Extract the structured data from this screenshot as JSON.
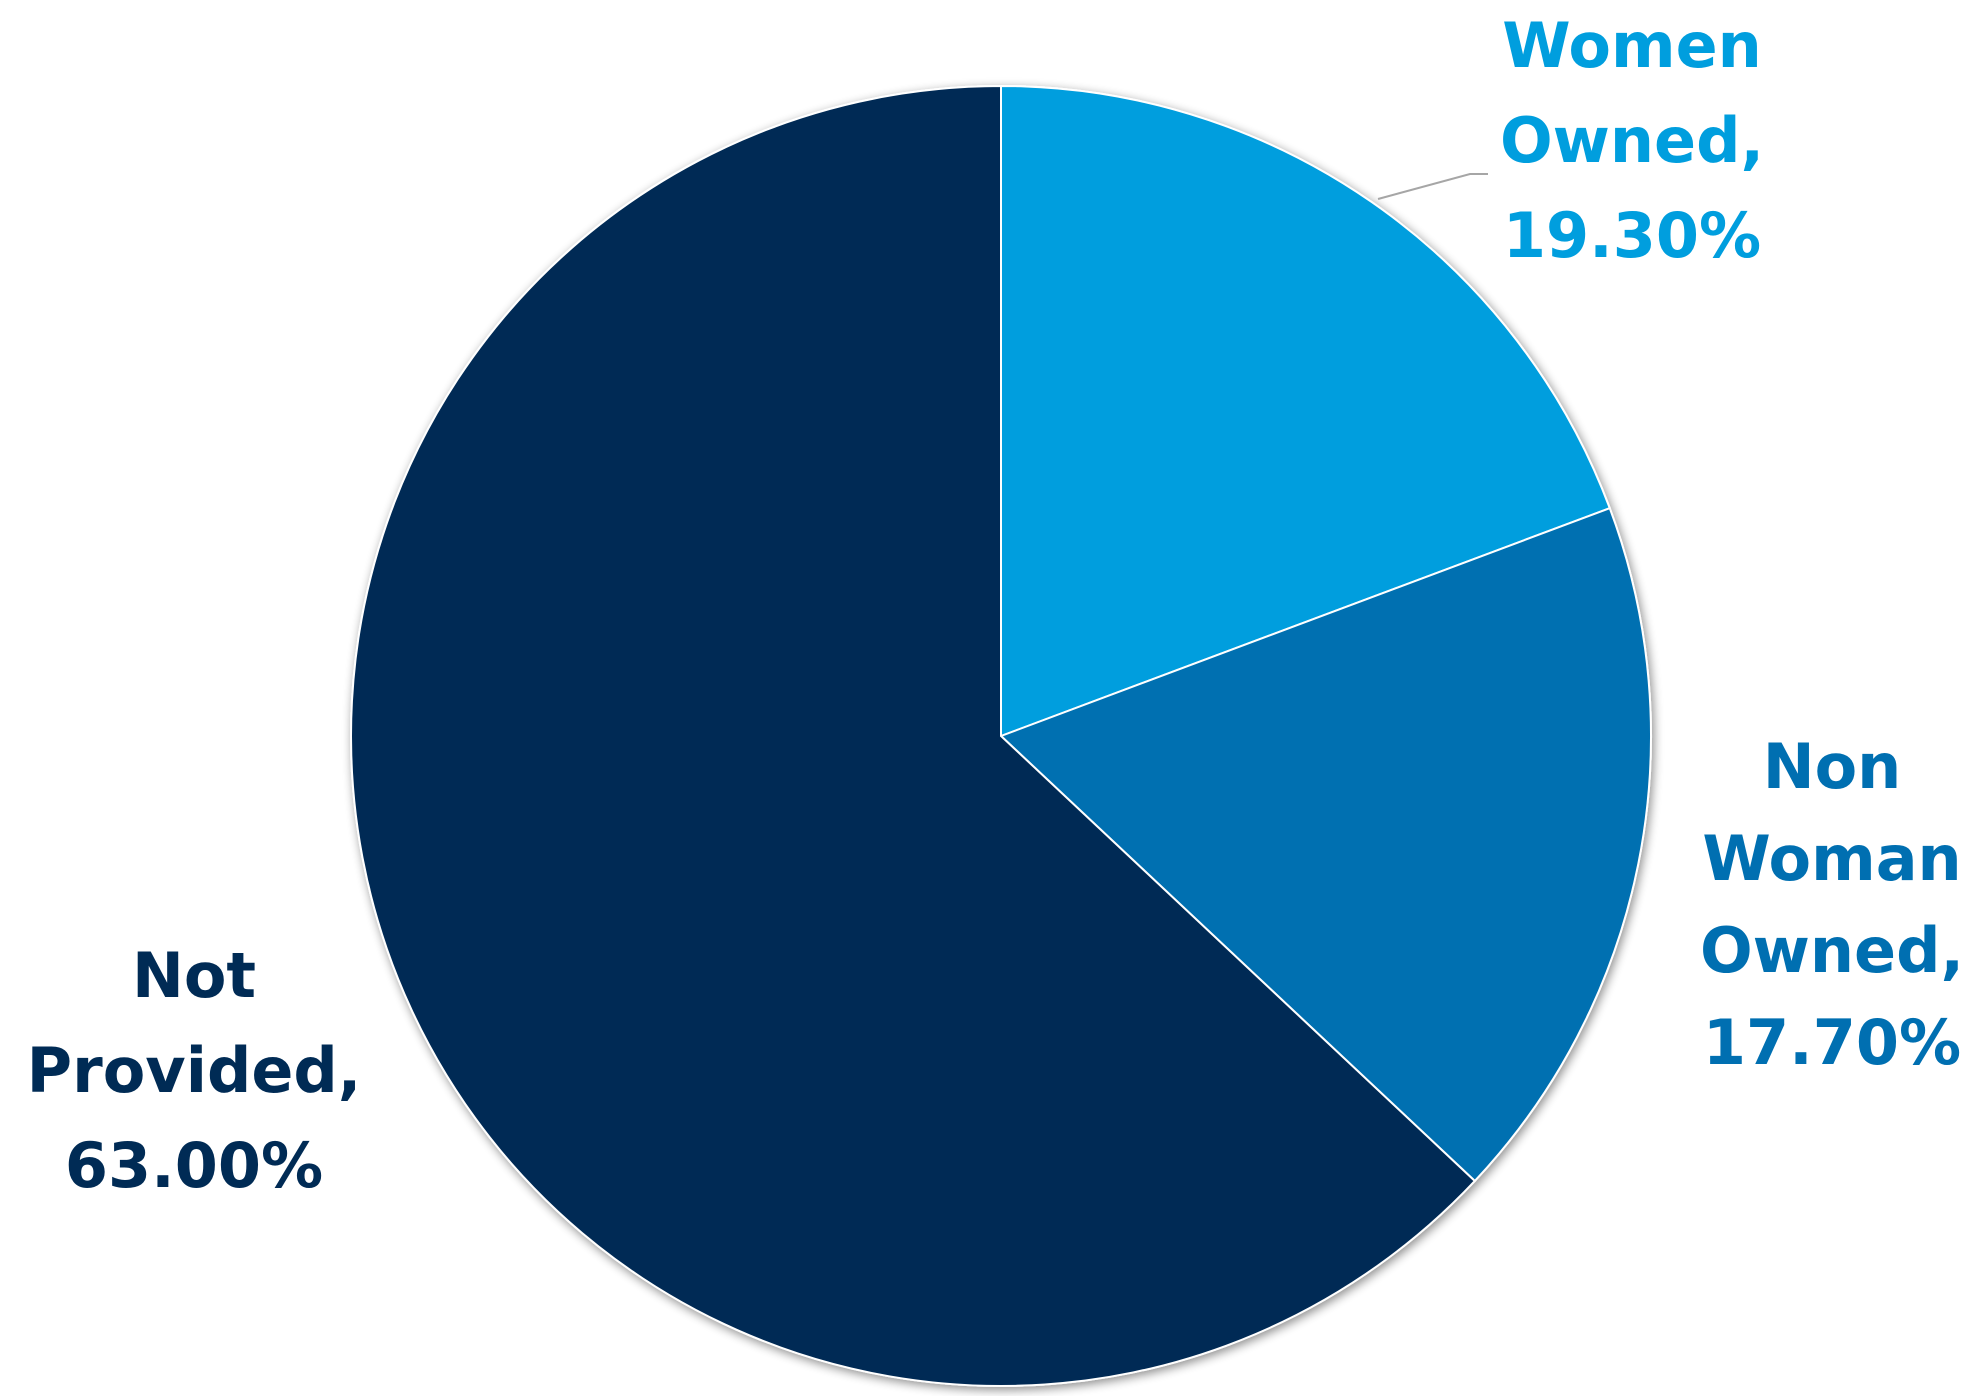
{
  "chart_data": {
    "type": "pie",
    "title": "",
    "legend": "none",
    "slices": [
      {
        "label_lines": [
          "Women",
          "Owned,",
          "19.30%"
        ],
        "category": "Women Owned",
        "value": 19.3,
        "color": "#009ede",
        "label_color": "#009ede",
        "leader_line": true
      },
      {
        "label_lines": [
          "Non",
          "Woman",
          "Owned,",
          "17.70%"
        ],
        "category": "Non Woman Owned",
        "value": 17.7,
        "color": "#006fb1",
        "label_color": "#006fb1",
        "leader_line": false
      },
      {
        "label_lines": [
          "Not",
          "Provided,",
          "63.00%"
        ],
        "category": "Not Provided",
        "value": 63.0,
        "color": "#002b55",
        "label_color": "#002b55",
        "leader_line": false
      }
    ]
  }
}
